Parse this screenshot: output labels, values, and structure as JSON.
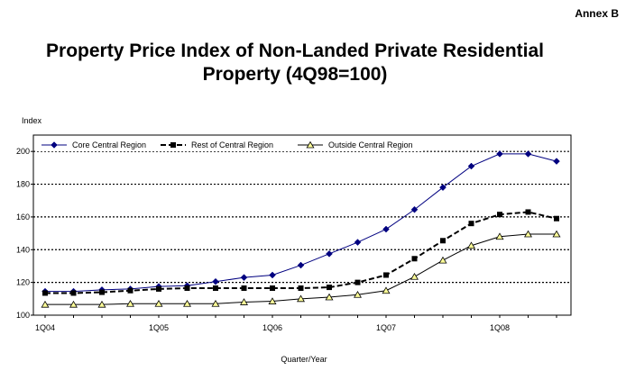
{
  "annex": "Annex B",
  "chart_data": {
    "type": "line",
    "title_line1": "Property Price Index of Non-Landed Private Residential",
    "title_line2": "Property (4Q98=100)",
    "ylabel": "Index",
    "xlabel": "Quarter/Year",
    "ylim": [
      100,
      210
    ],
    "yticks": [
      100,
      120,
      140,
      160,
      180,
      200
    ],
    "xtick_labels": [
      {
        "index": 0,
        "label": "1Q04"
      },
      {
        "index": 4,
        "label": "1Q05"
      },
      {
        "index": 8,
        "label": "1Q06"
      },
      {
        "index": 12,
        "label": "1Q07"
      },
      {
        "index": 16,
        "label": "1Q08"
      }
    ],
    "x": [
      "1Q04",
      "2Q04",
      "3Q04",
      "4Q04",
      "1Q05",
      "2Q05",
      "3Q05",
      "4Q05",
      "1Q06",
      "2Q06",
      "3Q06",
      "4Q06",
      "1Q07",
      "2Q07",
      "3Q07",
      "4Q07",
      "1Q08",
      "2Q08",
      "3Q08"
    ],
    "gridlines": "horizontal dotted",
    "legend_position": "top",
    "series": [
      {
        "name": "Core Central Region",
        "color": "#000080",
        "marker": "diamond",
        "line": "solid",
        "values": [
          114.5,
          114.5,
          115.5,
          116,
          117.5,
          118,
          120.5,
          123,
          124.5,
          130.5,
          137.5,
          144.5,
          152.5,
          164.5,
          178,
          191,
          198.5,
          198.5,
          194
        ]
      },
      {
        "name": "Rest of Central Region",
        "color": "#000000",
        "marker": "square",
        "line": "dashed",
        "values": [
          113.5,
          113.5,
          114,
          115,
          116,
          116.5,
          116.5,
          116.5,
          116.5,
          116.5,
          117,
          120,
          124.5,
          134.5,
          145.5,
          156,
          161.5,
          163,
          159
        ]
      },
      {
        "name": "Outside Central Region",
        "color": "#000000",
        "marker": "triangle",
        "line": "solid",
        "values": [
          106.5,
          106.5,
          106.5,
          107,
          107,
          107,
          107,
          108,
          108.5,
          110,
          111,
          112.5,
          115,
          123.5,
          133.5,
          142.5,
          148,
          149.5,
          149.5
        ]
      }
    ]
  }
}
